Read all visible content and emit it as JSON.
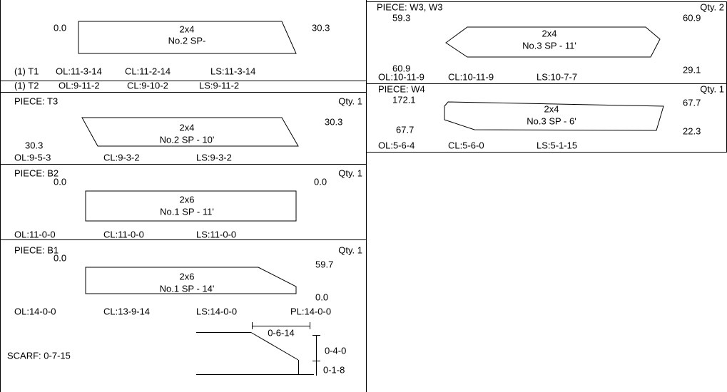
{
  "top_piece": {
    "left_value": "0.0",
    "right_value": "30.3",
    "size": "2x4",
    "grade": "No.2 SP-",
    "rows": [
      [
        "(1) T1",
        "OL:11-3-14",
        "CL:11-2-14",
        "LS:11-3-14"
      ],
      [
        "(1) T2",
        "OL:9-11-2",
        "CL:9-10-2",
        "LS:9-11-2"
      ]
    ]
  },
  "pieces": [
    {
      "label": "PIECE: T3",
      "qty": "Qty. 1",
      "top_left": "",
      "top_right": "30.3",
      "bottom_left": "30.3",
      "size": "2x4",
      "grade": "No.2 SP - 10'",
      "cuts": [
        "OL:9-5-3",
        "CL:9-3-2",
        "LS:9-3-2"
      ]
    },
    {
      "label": "PIECE: B2",
      "qty": "Qty. 1",
      "top_left": "0.0",
      "top_right": "0.0",
      "size": "2x6",
      "grade": "No.1 SP - 11'",
      "cuts": [
        "OL:11-0-0",
        "CL:11-0-0",
        "LS:11-0-0"
      ]
    },
    {
      "label": "PIECE: B1",
      "qty": "Qty. 1",
      "top_left": "0.0",
      "top_right": "59.7",
      "bottom_right": "0.0",
      "size": "2x6",
      "grade": "No.1 SP - 14'",
      "cuts": [
        "OL:14-0-0",
        "CL:13-9-14",
        "LS:14-0-0",
        "PL:14-0-0"
      ]
    },
    {
      "label": "PIECE: W3, W3",
      "qty": "Qty. 2",
      "top_left": "59.3",
      "top_right": "60.9",
      "bottom_left": "60.9",
      "bottom_right": "29.1",
      "size": "2x4",
      "grade": "No.3 SP - 11'",
      "cuts": [
        "OL:10-11-9",
        "CL:10-11-9",
        "LS:10-7-7"
      ]
    },
    {
      "label": "PIECE: W4",
      "qty": "Qty. 1",
      "top_left": "172.1",
      "top_right": "67.7",
      "bottom_left": "67.7",
      "bottom_right": "22.3",
      "size": "2x4",
      "grade": "No.3 SP - 6'",
      "cuts": [
        "OL:5-6-4",
        "CL:5-6-0",
        "LS:5-1-15"
      ]
    }
  ],
  "scarf": {
    "label": "SCARF: 0-7-15",
    "length": "0-6-14",
    "depth": "0-4-0",
    "end": "0-1-8"
  }
}
